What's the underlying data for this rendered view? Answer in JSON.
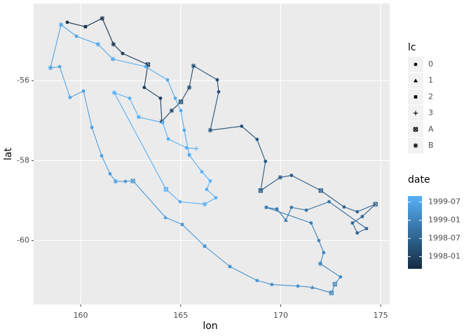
{
  "chart_data": {
    "type": "path",
    "x_label": "lon",
    "y_label": "lat",
    "xlim": [
      157.65,
      175.45
    ],
    "ylim": [
      -61.6,
      -54.07
    ],
    "xticks": [
      160,
      165,
      170,
      175
    ],
    "yticks": [
      -60,
      -58,
      -56
    ],
    "grid": true,
    "x": [
      159.33,
      160.24,
      161.08,
      161.64,
      162.1,
      163.36,
      163.18,
      163.99,
      164.06,
      164.55,
      165.01,
      165.43,
      165.64,
      166.83,
      166.9,
      166.48,
      168.05,
      168.82,
      169.24,
      169.0,
      169.98,
      170.54,
      172.01,
      173.17,
      173.83,
      174.74,
      174.08,
      173.59,
      173.83,
      174.29,
      172.42,
      171.28,
      170.54,
      170.26,
      169.81,
      169.28,
      171.52,
      171.91,
      172.15,
      171.98,
      172.99,
      172.71,
      172.54,
      171.59,
      170.86,
      169.56,
      168.82,
      167.46,
      166.2,
      165.08,
      164.24,
      162.62,
      162.24,
      161.75,
      161.47,
      161.05,
      160.56,
      160.14,
      159.47,
      158.95,
      158.49,
      159.02,
      159.79,
      160.87,
      161.61,
      163.25,
      164.34,
      164.73,
      165.01,
      165.18,
      165.43,
      166.06,
      166.48,
      166.3,
      166.76,
      166.2,
      164.97,
      164.27,
      161.68,
      162.45,
      162.9,
      164.1,
      164.38,
      165.29,
      165.78
    ],
    "y": [
      -54.54,
      -54.65,
      -54.44,
      -55.09,
      -55.32,
      -55.6,
      -56.17,
      -56.44,
      -57.02,
      -56.75,
      -56.53,
      -56.17,
      -55.63,
      -55.98,
      -56.28,
      -57.24,
      -57.14,
      -57.47,
      -58.02,
      -58.75,
      -58.42,
      -58.37,
      -58.75,
      -59.16,
      -59.28,
      -59.09,
      -59.4,
      -59.56,
      -59.81,
      -59.7,
      -59.03,
      -59.24,
      -59.17,
      -59.49,
      -59.21,
      -59.17,
      -59.56,
      -60.0,
      -60.3,
      -60.58,
      -60.91,
      -61.09,
      -61.31,
      -61.17,
      -61.14,
      -61.1,
      -61.0,
      -60.65,
      -60.14,
      -59.6,
      -59.42,
      -58.51,
      -58.52,
      -58.52,
      -58.33,
      -57.88,
      -57.17,
      -56.26,
      -56.42,
      -55.65,
      -55.68,
      -54.6,
      -54.89,
      -55.09,
      -55.46,
      -55.65,
      -55.98,
      -56.44,
      -56.75,
      -57.24,
      -57.86,
      -58.28,
      -58.51,
      -58.72,
      -58.93,
      -59.09,
      -59.03,
      -58.72,
      -56.3,
      -56.44,
      -56.91,
      -57.05,
      -57.46,
      -57.68,
      -57.7
    ],
    "lc": [
      "0",
      "2",
      "B",
      "B",
      "0",
      "A",
      "0",
      "0",
      "B",
      "B",
      "A",
      "B",
      "B",
      "0",
      "0",
      "B",
      "0",
      "0",
      "0",
      "A",
      "B",
      "0",
      "A",
      "0",
      "0",
      "A",
      "0",
      "0",
      "0",
      "0",
      "0",
      "0",
      "0",
      "1",
      "0",
      "2",
      "0",
      "0",
      "0",
      "B",
      "0",
      "A",
      "A",
      "1",
      "0",
      "0",
      "0",
      "2",
      "2",
      "2",
      "1",
      "A",
      "0",
      "B",
      "0",
      "0",
      "0",
      "0",
      "0",
      "0",
      "B",
      "B",
      "0",
      "B",
      "B",
      "0",
      "0",
      "0",
      "0",
      "0",
      "2",
      "0",
      "0",
      "0",
      "0",
      "B",
      "0",
      "A",
      "B",
      "0",
      "2",
      "0",
      "0",
      "0",
      "3"
    ],
    "date": [
      "1997-10",
      "1997-10",
      "1997-11",
      "1997-11",
      "1997-12",
      "1997-12",
      "1998-01",
      "1998-01",
      "1998-02",
      "1998-02",
      "1998-02",
      "1998-03",
      "1998-03",
      "1998-03",
      "1998-04",
      "1998-04",
      "1998-04",
      "1998-05",
      "1998-05",
      "1998-05",
      "1998-06",
      "1998-06",
      "1998-06",
      "1998-07",
      "1998-07",
      "1998-07",
      "1998-08",
      "1998-08",
      "1998-08",
      "1998-08",
      "1998-10",
      "1998-10",
      "1998-11",
      "1998-11",
      "1998-11",
      "1998-12",
      "1998-12",
      "1999-01",
      "1999-01",
      "1999-01",
      "1999-02",
      "1999-02",
      "1999-02",
      "1999-03",
      "1999-03",
      "1999-03",
      "1999-04",
      "1999-04",
      "1999-04",
      "1999-05",
      "1999-05",
      "1999-05",
      "1999-05",
      "1999-06",
      "1999-06",
      "1999-06",
      "1999-06",
      "1999-06",
      "1999-07",
      "1999-07",
      "1999-07",
      "1999-07",
      "1999-07",
      "1999-07",
      "1999-08",
      "1999-08",
      "1999-08",
      "1999-08",
      "1999-08",
      "1999-08",
      "1999-08",
      "1999-09",
      "1999-09",
      "1999-09",
      "1999-09",
      "1999-09",
      "1999-09",
      "1999-09",
      "1999-09",
      "1999-09",
      "1999-09",
      "1999-09",
      "1999-09",
      "1999-09",
      "1999-09"
    ],
    "shape_legend_title": "lc",
    "lc_levels": [
      "0",
      "1",
      "2",
      "3",
      "A",
      "B"
    ],
    "color_legend_title": "date",
    "date_lim": [
      "1997-09",
      "1999-09"
    ],
    "date_ticks": [
      "1998-01",
      "1998-07",
      "1999-01",
      "1999-07"
    ],
    "date_colors": [
      "#132B43",
      "#56B1F7"
    ]
  }
}
